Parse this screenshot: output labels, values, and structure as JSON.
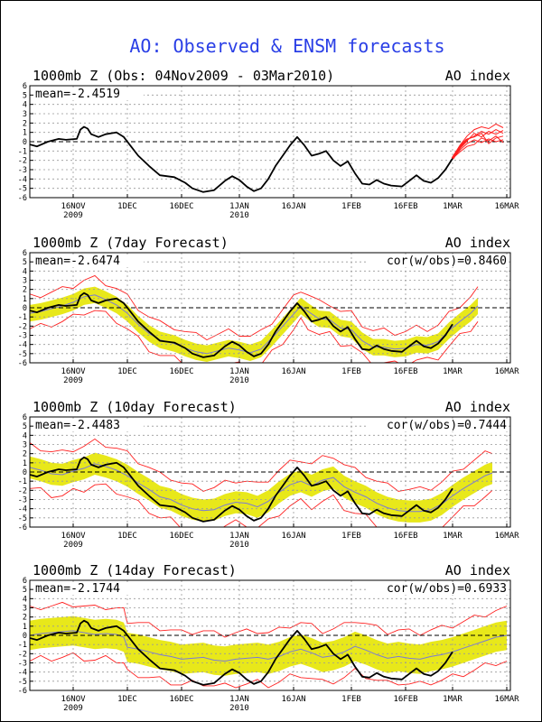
{
  "main_title": "AO: Observed & ENSM forecasts",
  "colors": {
    "title": "#2a3fe6",
    "obs": "#000000",
    "ensemble": "#ff2020",
    "spread": "#e8e81a",
    "mean_line": "#7a7ad8",
    "grid": "#999999"
  },
  "x_axis": {
    "ticks": [
      {
        "day": 12,
        "label": "16NOV",
        "year": "2009"
      },
      {
        "day": 27,
        "label": "1DEC",
        "year": ""
      },
      {
        "day": 42,
        "label": "16DEC",
        "year": ""
      },
      {
        "day": 58,
        "label": "1JAN",
        "year": "2010"
      },
      {
        "day": 73,
        "label": "16JAN",
        "year": ""
      },
      {
        "day": 89,
        "label": "1FEB",
        "year": ""
      },
      {
        "day": 104,
        "label": "16FEB",
        "year": ""
      },
      {
        "day": 117,
        "label": "1MAR",
        "year": ""
      },
      {
        "day": 132,
        "label": "16MAR",
        "year": ""
      }
    ],
    "xlim": [
      0,
      133
    ]
  },
  "chart_data": [
    {
      "type": "line",
      "title": "1000mb Z (Obs: 04Nov2009 - 03Mar2010)",
      "right_label": "AO index",
      "stat_text": "mean=-2.4519",
      "cor_text": "",
      "ylim": [
        -6,
        6
      ],
      "yticks": [
        -6,
        -5,
        -4,
        -3,
        -2,
        -1,
        0,
        1,
        2,
        3,
        4,
        5,
        6
      ],
      "observed": [
        [
          0,
          -0.3
        ],
        [
          2,
          -0.5
        ],
        [
          5,
          0
        ],
        [
          8,
          0.3
        ],
        [
          10,
          0.2
        ],
        [
          13,
          0.3
        ],
        [
          14,
          1.3
        ],
        [
          15,
          1.6
        ],
        [
          16,
          1.4
        ],
        [
          17,
          0.8
        ],
        [
          19,
          0.5
        ],
        [
          21,
          0.8
        ],
        [
          24,
          1
        ],
        [
          26,
          0.5
        ],
        [
          28,
          -0.5
        ],
        [
          30,
          -1.5
        ],
        [
          33,
          -2.6
        ],
        [
          36,
          -3.6
        ],
        [
          40,
          -3.8
        ],
        [
          43,
          -4.4
        ],
        [
          45,
          -5
        ],
        [
          48,
          -5.4
        ],
        [
          51,
          -5.2
        ],
        [
          54,
          -4.2
        ],
        [
          56,
          -3.7
        ],
        [
          58,
          -4.1
        ],
        [
          60,
          -4.8
        ],
        [
          62,
          -5.3
        ],
        [
          64,
          -5
        ],
        [
          66,
          -4
        ],
        [
          68,
          -2.6
        ],
        [
          70,
          -1.5
        ],
        [
          72,
          -0.4
        ],
        [
          74,
          0.5
        ],
        [
          76,
          -0.4
        ],
        [
          78,
          -1.5
        ],
        [
          80,
          -1.3
        ],
        [
          82,
          -1
        ],
        [
          84,
          -2
        ],
        [
          86,
          -2.6
        ],
        [
          88,
          -2.1
        ],
        [
          90,
          -3.4
        ],
        [
          92,
          -4.5
        ],
        [
          94,
          -4.6
        ],
        [
          96,
          -4.1
        ],
        [
          98,
          -4.5
        ],
        [
          100,
          -4.7
        ],
        [
          103,
          -4.8
        ],
        [
          105,
          -4.2
        ],
        [
          107,
          -3.6
        ],
        [
          109,
          -4.2
        ],
        [
          111,
          -4.4
        ],
        [
          113,
          -3.9
        ],
        [
          115,
          -3
        ],
        [
          117,
          -1.8
        ]
      ],
      "ensemble_members": [
        [
          [
            117,
            -1.8
          ],
          [
            119,
            -0.6
          ],
          [
            121,
            0.2
          ],
          [
            123,
            0.6
          ],
          [
            125,
            1.1
          ],
          [
            127,
            0.8
          ],
          [
            129,
            1.3
          ],
          [
            131,
            0.9
          ]
        ],
        [
          [
            117,
            -1.8
          ],
          [
            119,
            -0.9
          ],
          [
            121,
            -0.2
          ],
          [
            123,
            0.2
          ],
          [
            125,
            -0.1
          ],
          [
            127,
            0.3
          ],
          [
            129,
            0.0
          ],
          [
            131,
            0.2
          ]
        ],
        [
          [
            117,
            -1.8
          ],
          [
            119,
            -0.4
          ],
          [
            121,
            0.6
          ],
          [
            123,
            1.3
          ],
          [
            125,
            1.6
          ],
          [
            127,
            1.4
          ],
          [
            129,
            1.9
          ],
          [
            131,
            1.5
          ]
        ],
        [
          [
            117,
            -1.8
          ],
          [
            119,
            -1.1
          ],
          [
            121,
            -0.5
          ],
          [
            123,
            -0.3
          ],
          [
            125,
            0.4
          ],
          [
            127,
            0.1
          ],
          [
            129,
            0.6
          ],
          [
            131,
            -0.1
          ]
        ],
        [
          [
            117,
            -1.8
          ],
          [
            119,
            -0.7
          ],
          [
            121,
            0.1
          ],
          [
            123,
            0.9
          ],
          [
            125,
            0.5
          ],
          [
            127,
            1.1
          ],
          [
            129,
            0.8
          ],
          [
            131,
            1.2
          ]
        ],
        [
          [
            117,
            -1.8
          ],
          [
            119,
            -0.5
          ],
          [
            121,
            0.3
          ],
          [
            123,
            0.5
          ],
          [
            125,
            0.9
          ],
          [
            127,
            -0.2
          ],
          [
            129,
            0.4
          ],
          [
            131,
            0.6
          ]
        ]
      ]
    },
    {
      "type": "line",
      "title": "1000mb Z (7day Forecast)",
      "right_label": "AO index",
      "stat_text": "mean=-2.6474",
      "cor_text": "cor(w/obs)=0.8460",
      "ylim": [
        -6,
        6
      ],
      "yticks": [
        -6,
        -5,
        -4,
        -3,
        -2,
        -1,
        0,
        1,
        2,
        3,
        4,
        5,
        6
      ],
      "observed_ref": 0,
      "forecast_mean": [
        [
          0,
          -0.6
        ],
        [
          3,
          -0.4
        ],
        [
          6,
          -0.1
        ],
        [
          9,
          0.2
        ],
        [
          12,
          0.6
        ],
        [
          15,
          1.2
        ],
        [
          18,
          1.4
        ],
        [
          21,
          0.9
        ],
        [
          24,
          0.3
        ],
        [
          27,
          -0.6
        ],
        [
          30,
          -1.8
        ],
        [
          33,
          -2.8
        ],
        [
          36,
          -3.5
        ],
        [
          40,
          -3.9
        ],
        [
          43,
          -4.4
        ],
        [
          46,
          -4.8
        ],
        [
          49,
          -5
        ],
        [
          52,
          -4.7
        ],
        [
          55,
          -4.4
        ],
        [
          58,
          -4.6
        ],
        [
          61,
          -4.9
        ],
        [
          64,
          -4.5
        ],
        [
          67,
          -3.3
        ],
        [
          70,
          -2
        ],
        [
          73,
          -0.7
        ],
        [
          75,
          0.2
        ],
        [
          77,
          -0.4
        ],
        [
          80,
          -1.2
        ],
        [
          83,
          -1.3
        ],
        [
          86,
          -2.2
        ],
        [
          89,
          -2.4
        ],
        [
          92,
          -3.6
        ],
        [
          95,
          -4.3
        ],
        [
          98,
          -4.3
        ],
        [
          101,
          -4.5
        ],
        [
          104,
          -4.4
        ],
        [
          107,
          -4
        ],
        [
          110,
          -4.1
        ],
        [
          113,
          -3.7
        ],
        [
          116,
          -2.5
        ],
        [
          119,
          -1.5
        ],
        [
          122,
          -0.6
        ],
        [
          124,
          0.2
        ]
      ],
      "spread": 0.9,
      "envelope": 1.7
    },
    {
      "type": "line",
      "title": "1000mb Z (10day Forecast)",
      "right_label": "AO index",
      "stat_text": "mean=-2.4483",
      "cor_text": "cor(w/obs)=0.7444",
      "ylim": [
        -6,
        6
      ],
      "yticks": [
        -6,
        -5,
        -4,
        -3,
        -2,
        -1,
        0,
        1,
        2,
        3,
        4,
        5,
        6
      ],
      "observed_ref": 0,
      "forecast_mean": [
        [
          0,
          0.5
        ],
        [
          3,
          0.2
        ],
        [
          6,
          -0.2
        ],
        [
          9,
          -0.3
        ],
        [
          12,
          0.1
        ],
        [
          15,
          0.4
        ],
        [
          18,
          0.9
        ],
        [
          21,
          0.6
        ],
        [
          24,
          0.2
        ],
        [
          27,
          -0.4
        ],
        [
          30,
          -1.2
        ],
        [
          33,
          -1.9
        ],
        [
          36,
          -2.7
        ],
        [
          39,
          -3
        ],
        [
          42,
          -3.6
        ],
        [
          45,
          -4
        ],
        [
          48,
          -4.2
        ],
        [
          51,
          -4.1
        ],
        [
          54,
          -3.6
        ],
        [
          57,
          -3.3
        ],
        [
          60,
          -3.4
        ],
        [
          63,
          -3.8
        ],
        [
          66,
          -3.2
        ],
        [
          69,
          -2.2
        ],
        [
          72,
          -1.4
        ],
        [
          75,
          -1
        ],
        [
          78,
          -1.5
        ],
        [
          81,
          -0.9
        ],
        [
          84,
          -0.6
        ],
        [
          87,
          -1.6
        ],
        [
          90,
          -2.2
        ],
        [
          93,
          -2.7
        ],
        [
          96,
          -3.4
        ],
        [
          99,
          -3.9
        ],
        [
          102,
          -4.2
        ],
        [
          105,
          -4.3
        ],
        [
          108,
          -4.3
        ],
        [
          111,
          -4.1
        ],
        [
          114,
          -3.5
        ],
        [
          117,
          -2.6
        ],
        [
          120,
          -1.8
        ],
        [
          123,
          -1.1
        ],
        [
          126,
          -0.4
        ],
        [
          128,
          -0.1
        ]
      ],
      "spread": 1.2,
      "envelope": 2.3
    },
    {
      "type": "line",
      "title": "1000mb Z (14day Forecast)",
      "right_label": "AO index",
      "stat_text": "mean=-2.1744",
      "cor_text": "cor(w/obs)=0.6933",
      "ylim": [
        -6,
        6
      ],
      "yticks": [
        -6,
        -5,
        -4,
        -3,
        -2,
        -1,
        0,
        1,
        2,
        3,
        4,
        5,
        6
      ],
      "observed_ref": 0,
      "forecast_mean": [
        [
          0,
          0
        ],
        [
          3,
          0.2
        ],
        [
          6,
          0.3
        ],
        [
          9,
          0.4
        ],
        [
          12,
          0.5
        ],
        [
          15,
          0.3
        ],
        [
          18,
          0.1
        ],
        [
          21,
          0.2
        ],
        [
          24,
          0.1
        ],
        [
          26,
          -0.2
        ],
        [
          27,
          -1.3
        ],
        [
          30,
          -1.5
        ],
        [
          33,
          -1.8
        ],
        [
          36,
          -2.1
        ],
        [
          39,
          -2.3
        ],
        [
          42,
          -2.6
        ],
        [
          45,
          -2.5
        ],
        [
          48,
          -2.4
        ],
        [
          51,
          -2.7
        ],
        [
          54,
          -2.8
        ],
        [
          57,
          -2.6
        ],
        [
          60,
          -2.5
        ],
        [
          63,
          -2.4
        ],
        [
          66,
          -2.6
        ],
        [
          69,
          -2.3
        ],
        [
          72,
          -1.8
        ],
        [
          75,
          -1.5
        ],
        [
          78,
          -1.9
        ],
        [
          81,
          -2.4
        ],
        [
          84,
          -2.2
        ],
        [
          87,
          -1.8
        ],
        [
          90,
          -1.2
        ],
        [
          93,
          -1.6
        ],
        [
          96,
          -2.1
        ],
        [
          99,
          -2.5
        ],
        [
          102,
          -2.3
        ],
        [
          105,
          -2.5
        ],
        [
          108,
          -2.6
        ],
        [
          111,
          -2.3
        ],
        [
          114,
          -2.1
        ],
        [
          117,
          -1.8
        ],
        [
          120,
          -1.4
        ],
        [
          123,
          -1
        ],
        [
          126,
          -0.6
        ],
        [
          129,
          -0.2
        ],
        [
          132,
          0
        ]
      ],
      "spread": 1.6,
      "envelope": 2.8
    }
  ]
}
